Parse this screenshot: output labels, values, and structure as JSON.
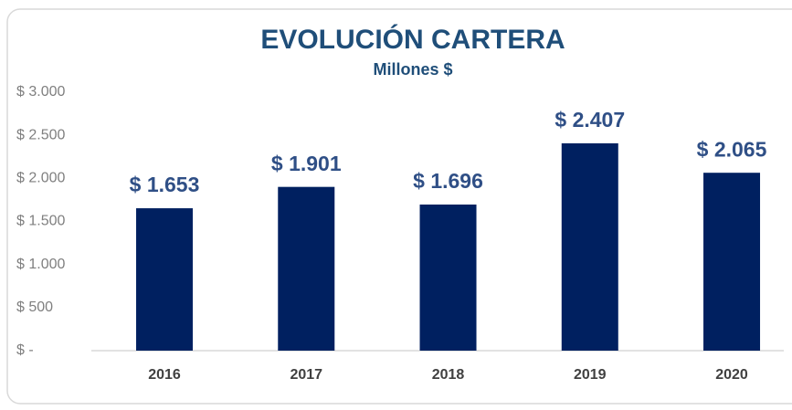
{
  "chart_data": {
    "type": "bar",
    "title": "EVOLUCIÓN CARTERA",
    "subtitle": "Millones $",
    "categories": [
      "2016",
      "2017",
      "2018",
      "2019",
      "2020"
    ],
    "values": [
      1653,
      1901,
      1696,
      2407,
      2065
    ],
    "value_labels": [
      "$ 1.653",
      "$ 1.901",
      "$ 1.696",
      "$ 2.407",
      "$ 2.065"
    ],
    "color": "#002060",
    "ylim": [
      0,
      3000
    ],
    "yticks": [
      {
        "value": 0,
        "label": "$ -"
      },
      {
        "value": 500,
        "label": "$ 500"
      },
      {
        "value": 1000,
        "label": "$ 1.000"
      },
      {
        "value": 1500,
        "label": "$ 1.500"
      },
      {
        "value": 2000,
        "label": "$ 2.000"
      },
      {
        "value": 2500,
        "label": "$ 2.500"
      },
      {
        "value": 3000,
        "label": "$ 3.000"
      }
    ],
    "grid": false
  }
}
